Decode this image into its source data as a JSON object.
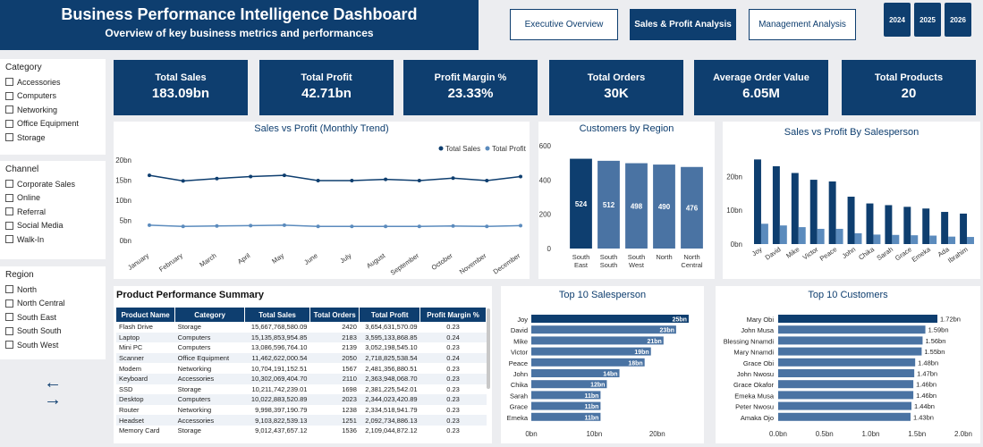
{
  "header": {
    "title": "Business Performance Intelligence Dashboard",
    "subtitle": "Overview of key business metrics and performances"
  },
  "nav": [
    "Executive Overview",
    "Sales & Profit Analysis",
    "Management Analysis"
  ],
  "years": [
    "2024",
    "2025",
    "2026"
  ],
  "filters": {
    "category": {
      "title": "Category",
      "items": [
        "Accessories",
        "Computers",
        "Networking",
        "Office Equipment",
        "Storage"
      ]
    },
    "channel": {
      "title": "Channel",
      "items": [
        "Corporate Sales",
        "Online",
        "Referral",
        "Social Media",
        "Walk-In"
      ]
    },
    "region": {
      "title": "Region",
      "items": [
        "North",
        "North Central",
        "South East",
        "South South",
        "South West"
      ]
    }
  },
  "kpis": [
    {
      "label": "Total Sales",
      "value": "183.09bn"
    },
    {
      "label": "Total Profit",
      "value": "42.71bn"
    },
    {
      "label": "Profit Margin %",
      "value": "23.33%"
    },
    {
      "label": "Total Orders",
      "value": "30K"
    },
    {
      "label": "Average Order Value",
      "value": "6.05M"
    },
    {
      "label": "Total Products",
      "value": "20"
    }
  ],
  "colors": {
    "navy": "#0e3e6f",
    "steel": "#4a73a3",
    "light": "#5b8bbd"
  },
  "chart_data": [
    {
      "type": "line",
      "title": "Sales vs Profit (Monthly Trend)",
      "categories": [
        "January",
        "February",
        "March",
        "April",
        "May",
        "June",
        "July",
        "August",
        "September",
        "October",
        "November",
        "December"
      ],
      "series": [
        {
          "name": "Total Sales",
          "values": [
            16.2,
            14.8,
            15.4,
            15.9,
            16.2,
            14.9,
            14.9,
            15.2,
            14.9,
            15.5,
            14.9,
            15.9
          ]
        },
        {
          "name": "Total Profit",
          "values": [
            3.8,
            3.5,
            3.6,
            3.7,
            3.8,
            3.5,
            3.5,
            3.5,
            3.5,
            3.6,
            3.5,
            3.7
          ]
        }
      ],
      "yticks": [
        "0bn",
        "5bn",
        "10bn",
        "15bn",
        "20bn"
      ],
      "ylim": [
        0,
        20
      ],
      "legend": "top-right"
    },
    {
      "type": "bar",
      "title": "Customers by Region",
      "categories": [
        "South East",
        "South South",
        "South West",
        "North",
        "North Central"
      ],
      "values": [
        524,
        512,
        498,
        490,
        476
      ],
      "yticks": [
        "0",
        "200",
        "400",
        "600"
      ],
      "ylim": [
        0,
        600
      ]
    },
    {
      "type": "bar",
      "title": "Sales vs Profit By Salesperson",
      "categories": [
        "Joy",
        "David",
        "Mike",
        "Victor",
        "Peace",
        "John",
        "Chika",
        "Sarah",
        "Grace",
        "Emeka",
        "Ada",
        "Ibrahim"
      ],
      "series": [
        {
          "name": "Total Sales",
          "values": [
            25,
            23,
            21,
            19,
            18.5,
            14,
            12,
            11.5,
            11,
            10.5,
            9.5,
            9
          ]
        },
        {
          "name": "Total Profit",
          "values": [
            6,
            5.5,
            5,
            4.5,
            4.5,
            3.2,
            2.8,
            2.7,
            2.6,
            2.5,
            2.2,
            2.1
          ]
        }
      ],
      "yticks": [
        "0bn",
        "10bn",
        "20bn"
      ],
      "ylim": [
        0,
        28
      ]
    },
    {
      "type": "bar",
      "title": "Top 10 Salesperson",
      "categories": [
        "Joy",
        "David",
        "Mike",
        "Victor",
        "Peace",
        "John",
        "Chika",
        "Sarah",
        "Grace",
        "Emeka"
      ],
      "values": [
        25,
        23,
        21,
        19,
        18,
        14,
        12,
        11,
        11,
        11
      ],
      "labels": [
        "25bn",
        "23bn",
        "21bn",
        "19bn",
        "18bn",
        "14bn",
        "12bn",
        "11bn",
        "11bn",
        "11bn"
      ],
      "xticks": [
        "0bn",
        "10bn",
        "20bn"
      ],
      "xlim": [
        0,
        26
      ]
    },
    {
      "type": "bar",
      "title": "Top 10 Customers",
      "categories": [
        "Mary Obi",
        "John Musa",
        "Blessing Nnamdi",
        "Mary Nnamdi",
        "Grace Obi",
        "John Nwosu",
        "Grace Okafor",
        "Emeka Musa",
        "Peter Nwosu",
        "Amaka Ojo"
      ],
      "values": [
        1.72,
        1.59,
        1.56,
        1.55,
        1.48,
        1.47,
        1.46,
        1.46,
        1.44,
        1.43
      ],
      "labels": [
        "1.72bn",
        "1.59bn",
        "1.56bn",
        "1.55bn",
        "1.48bn",
        "1.47bn",
        "1.46bn",
        "1.46bn",
        "1.44bn",
        "1.43bn"
      ],
      "xticks": [
        "0.0bn",
        "0.5bn",
        "1.0bn",
        "1.5bn",
        "2.0bn"
      ],
      "xlim": [
        0,
        2
      ]
    }
  ],
  "table": {
    "title": "Product Performance Summary",
    "columns": [
      "Product Name",
      "Category",
      "Total Sales",
      "Total Orders",
      "Total Profit",
      "Profit Margin %"
    ],
    "rows": [
      [
        "Flash Drive",
        "Storage",
        "15,667,768,580.09",
        "2420",
        "3,654,631,570.09",
        "0.23"
      ],
      [
        "Laptop",
        "Computers",
        "15,135,853,954.85",
        "2183",
        "3,595,133,868.85",
        "0.24"
      ],
      [
        "Mini PC",
        "Computers",
        "13,086,596,764.10",
        "2139",
        "3,052,198,545.10",
        "0.23"
      ],
      [
        "Scanner",
        "Office Equipment",
        "11,462,622,000.54",
        "2050",
        "2,718,825,538.54",
        "0.24"
      ],
      [
        "Modem",
        "Networking",
        "10,704,191,152.51",
        "1567",
        "2,481,356,880.51",
        "0.23"
      ],
      [
        "Keyboard",
        "Accessories",
        "10,302,069,404.70",
        "2110",
        "2,363,948,068.70",
        "0.23"
      ],
      [
        "SSD",
        "Storage",
        "10,211,742,239.01",
        "1698",
        "2,381,225,542.01",
        "0.23"
      ],
      [
        "Desktop",
        "Computers",
        "10,022,883,520.89",
        "2023",
        "2,344,023,420.89",
        "0.23"
      ],
      [
        "Router",
        "Networking",
        "9,998,397,190.79",
        "1238",
        "2,334,518,941.79",
        "0.23"
      ],
      [
        "Headset",
        "Accessories",
        "9,103,822,539.13",
        "1251",
        "2,092,734,886.13",
        "0.23"
      ],
      [
        "Memory Card",
        "Storage",
        "9,012,437,657.12",
        "1536",
        "2,109,044,872.12",
        "0.23"
      ]
    ]
  }
}
